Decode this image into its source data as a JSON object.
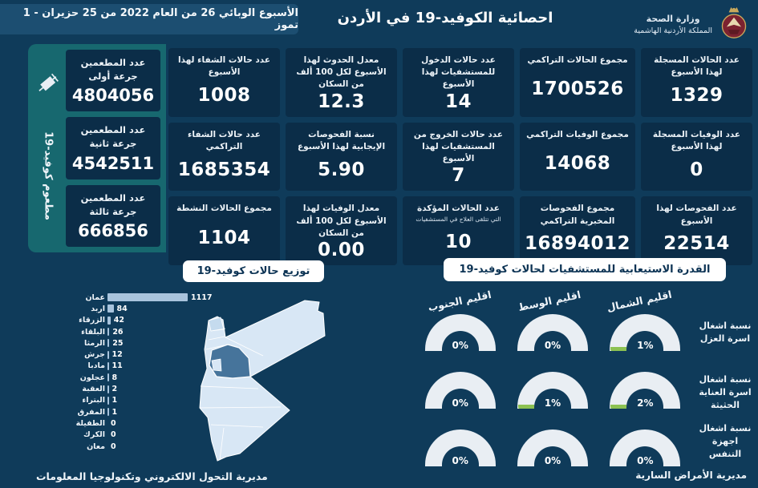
{
  "header": {
    "title": "احصائية الكوفيد-19 في الأردن",
    "week_banner": "الأسبوع الوبائي  26 من العام 2022 من  25 حزيران - 1 تموز",
    "ministry": "وزارة الصحة",
    "kingdom": "المملكة الأردنية الهاشمية"
  },
  "stats_cards": [
    {
      "label": "عدد الحالات المسجلة لهذا الأسبوع",
      "value": "1329"
    },
    {
      "label": "مجموع الحالات التراكمي",
      "value": "1700526"
    },
    {
      "label": "عدد حالات الدخول للمستشفيات لهذا الأسبوع",
      "value": "14"
    },
    {
      "label": "معدل الحدوث لهذا الأسبوع لكل 100 ألف من السكان",
      "value": "12.3"
    },
    {
      "label": "عدد حالات الشفاء لهذا الأسبوع",
      "value": "1008"
    },
    {
      "label": "عدد الوفيات المسجلة لهذا الأسبوع",
      "value": "0"
    },
    {
      "label": "مجموع الوفيات التراكمي",
      "value": "14068"
    },
    {
      "label": "عدد حالات الخروج من المستشفيات لهذا الأسبوع",
      "value": "7"
    },
    {
      "label": "نسبة الفحوصات الإيجابية لهذا الأسبوع",
      "value": "5.90"
    },
    {
      "label": "عدد حالات الشفاء التراكمي",
      "value": "1685354"
    },
    {
      "label": "عدد الفحوصات لهذا الأسبوع",
      "value": "22514"
    },
    {
      "label": "مجموع الفحوصات المخبرية التراكمي",
      "value": "16894012"
    },
    {
      "label": "عدد الحالات المؤكدة",
      "sublabel": "التي تتلقى العلاج في المستشفيات",
      "value": "10"
    },
    {
      "label": "معدل الوفيات لهذا الأسبوع لكل 100 ألف من السكان",
      "value": "0.00"
    },
    {
      "label": "مجموع الحالات النشطة",
      "value": "1104"
    }
  ],
  "vaccination": {
    "sidebar_label": "مطعوم كوفيد-19",
    "cards": [
      {
        "label": "عدد المطعمين جرعة أولى",
        "value": "4804056"
      },
      {
        "label": "عدد المطعمين جرعة ثانية",
        "value": "4542511"
      },
      {
        "label": "عدد المطعمين جرعة ثالثة",
        "value": "666856"
      }
    ]
  },
  "section_titles": {
    "distribution": "توزيع حالات كوفيد-19",
    "capacity": "القدرة الاستيعابية للمستشفيات لحالات كوفيد-19"
  },
  "chart_data": [
    {
      "type": "bar",
      "orientation": "horizontal",
      "title": "توزيع حالات كوفيد-19",
      "categories": [
        "عمان",
        "اربد",
        "الزرقاء",
        "البلقاء",
        "الرمثا",
        "جرش",
        "مادبا",
        "عجلون",
        "العقبة",
        "البتراء",
        "المفرق",
        "الطفيلة",
        "الكرك",
        "معان"
      ],
      "values": [
        1117,
        84,
        42,
        26,
        25,
        12,
        11,
        8,
        2,
        1,
        1,
        0,
        0,
        0
      ],
      "xlim": [
        0,
        1117
      ],
      "bar_color": "#a9c4dd"
    },
    {
      "type": "gauge",
      "title": "القدرة الاستيعابية للمستشفيات لحالات كوفيد-19",
      "columns": [
        "اقليم الشمال",
        "اقليم الوسط",
        "اقليم الجنوب"
      ],
      "rows": [
        {
          "label": "نسبة اشغال اسرة العزل",
          "values": [
            "1%",
            "0%",
            "0%"
          ]
        },
        {
          "label": "نسبة اشغال اسرة العناية الحثيثة",
          "values": [
            "2%",
            "1%",
            "0%"
          ]
        },
        {
          "label": "نسبة اشغال اجهزة التنفس",
          "values": [
            "0%",
            "0%",
            "0%"
          ]
        }
      ],
      "range": [
        0,
        100
      ],
      "fill_color": "#8cc152",
      "track_color": "#e9eef3"
    }
  ],
  "footer": {
    "right": "مديرية الأمراض السارية",
    "left": "مديرية التحول الالكتروني وتكنولوجيا المعلومات"
  },
  "colors": {
    "background": "#0f3b5a",
    "card": "#0b2d48",
    "sidebar_teal": "#17686f",
    "bar": "#a9c4dd",
    "gauge_green": "#8cc152",
    "map_light": "#d8e7f5",
    "map_highlight": "#46749b"
  }
}
